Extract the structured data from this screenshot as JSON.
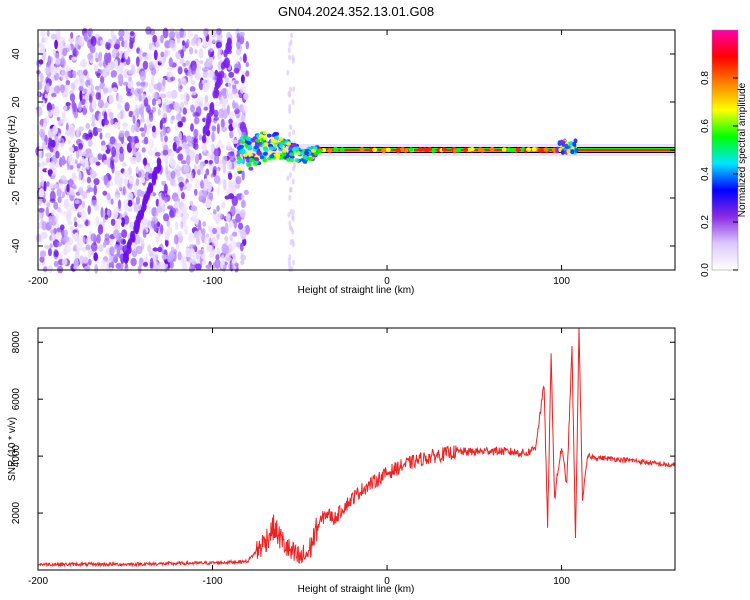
{
  "title": "GN04.2024.352.13.01.G08",
  "chart_data": [
    {
      "type": "heatmap",
      "xlabel": "Height of straight line (km)",
      "ylabel": "Frequency (Hz)",
      "xlim": [
        -200,
        165
      ],
      "ylim": [
        -50,
        50
      ],
      "xticks": [
        -200,
        -100,
        0,
        100
      ],
      "yticks": [
        -40,
        -20,
        0,
        20,
        40
      ],
      "colorbar": {
        "label": "Normalized spectral amplitude",
        "range": [
          0.0,
          1.0
        ],
        "ticks": [
          0.0,
          0.2,
          0.4,
          0.6,
          0.8
        ],
        "tick_labels": [
          "0.0",
          "0.2",
          "0.4",
          "0.6",
          "0.8"
        ],
        "colormap": [
          "#ffffff",
          "#dcc8ff",
          "#8a2be2",
          "#0000ff",
          "#00e5ff",
          "#00ff00",
          "#ffff00",
          "#ff8000",
          "#ff0000",
          "#ff00aa"
        ]
      },
      "noise_region_x": [
        -200,
        -80
      ],
      "signal_band": {
        "center_hz": 0,
        "x_start": -85,
        "x_end": 165,
        "bandwidth_hz_near": 8,
        "bandwidth_hz_far": 2
      },
      "feature_at_x": 105
    },
    {
      "type": "line",
      "xlabel": "Height of straight line (km)",
      "ylabel": "SNR (10 * v/v)",
      "xlim": [
        -200,
        165
      ],
      "ylim": [
        0,
        8500
      ],
      "xticks": [
        -200,
        -100,
        0,
        100
      ],
      "yticks": [
        2000,
        4000,
        6000,
        8000
      ],
      "color": "#ee2222",
      "x": [
        -200,
        -150,
        -100,
        -80,
        -70,
        -65,
        -60,
        -55,
        -50,
        -45,
        -40,
        -35,
        -30,
        -25,
        -20,
        -15,
        -10,
        -5,
        0,
        10,
        20,
        30,
        40,
        50,
        60,
        70,
        80,
        85,
        90,
        92,
        94,
        96,
        98,
        100,
        103,
        106,
        108,
        110,
        112,
        115,
        120,
        140,
        165
      ],
      "y": [
        200,
        200,
        250,
        300,
        1000,
        1500,
        1000,
        600,
        400,
        600,
        1500,
        2000,
        1800,
        2200,
        2500,
        2800,
        3000,
        3200,
        3400,
        3700,
        3900,
        4050,
        4150,
        4150,
        4200,
        4150,
        4100,
        4300,
        6500,
        1500,
        7500,
        2500,
        3500,
        4300,
        3000,
        7800,
        1000,
        8500,
        2500,
        4000,
        3950,
        3850,
        3650
      ]
    }
  ]
}
